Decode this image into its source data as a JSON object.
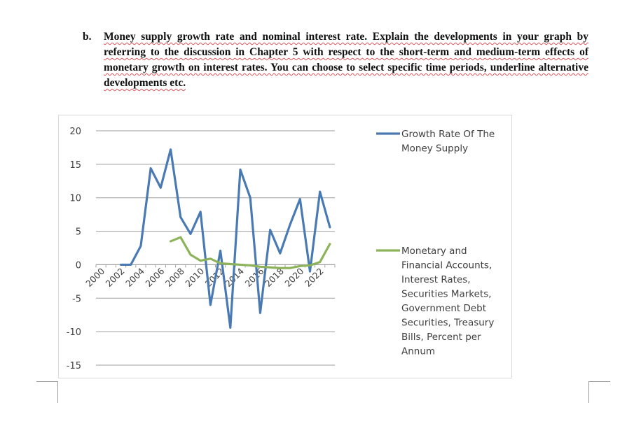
{
  "question": {
    "label": "b.",
    "text": "Money supply growth rate and nominal interest rate. Explain the developments in your graph by referring to the discussion in Chapter 5 with respect to the short-term and medium-term effects of monetary growth on interest rates. You can choose to select specific time periods, underline alternative developments etc."
  },
  "chart_data": {
    "type": "line",
    "title": "",
    "xlabel": "",
    "ylabel": "",
    "ylim": [
      -15,
      20
    ],
    "yticks": [
      20,
      15,
      10,
      5,
      0,
      -5,
      -10,
      -15
    ],
    "x": [
      2000,
      2001,
      2002,
      2003,
      2004,
      2005,
      2006,
      2007,
      2008,
      2009,
      2010,
      2011,
      2012,
      2013,
      2014,
      2015,
      2016,
      2017,
      2018,
      2019,
      2020,
      2021,
      2022,
      2023
    ],
    "xtick_labels": [
      "2000",
      "2002",
      "2004",
      "2006",
      "2008",
      "2010",
      "2012",
      "2014",
      "2016",
      "2018",
      "2020",
      "2022"
    ],
    "legend_position": "right",
    "series": [
      {
        "name": "Growth Rate Of The Money Supply",
        "legend_lines": [
          "Growth Rate Of The",
          "Money Supply"
        ],
        "color": "#4a7ab4",
        "values": [
          null,
          null,
          0.0,
          0.0,
          2.8,
          14.4,
          11.5,
          17.2,
          7.1,
          4.6,
          7.9,
          -6.0,
          2.1,
          -9.4,
          14.2,
          10.0,
          -7.2,
          5.2,
          1.7,
          6.0,
          9.8,
          -1.0,
          10.9,
          5.6
        ]
      },
      {
        "name": "Monetary and Financial Accounts, Interest Rates, Securities Markets, Government Debt Securities, Treasury Bills, Percent per Annum",
        "legend_lines": [
          "Monetary and",
          "Financial Accounts,",
          "Interest Rates,",
          "Securities Markets,",
          "Government Debt",
          "Securities, Treasury",
          "Bills, Percent per",
          "Annum"
        ],
        "color": "#8db35a",
        "values": [
          null,
          null,
          null,
          null,
          null,
          null,
          null,
          3.5,
          4.1,
          1.5,
          0.6,
          0.9,
          0.2,
          0.1,
          0.0,
          -0.1,
          -0.3,
          -0.4,
          -0.5,
          -0.5,
          -0.2,
          -0.1,
          0.4,
          3.1
        ]
      }
    ]
  }
}
